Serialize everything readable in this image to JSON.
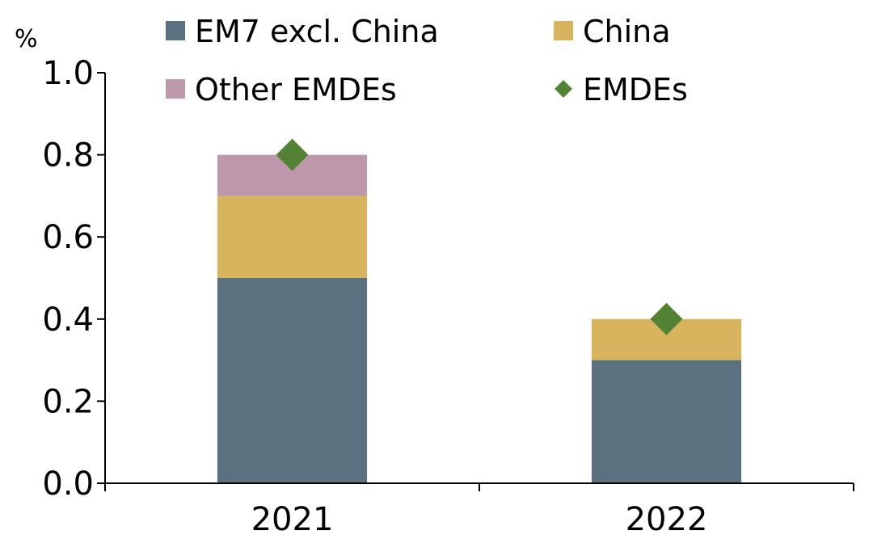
{
  "chart_data": {
    "type": "bar",
    "stacked": true,
    "categories": [
      "2021",
      "2022"
    ],
    "series": [
      {
        "name": "EM7 excl. China",
        "values": [
          0.5,
          0.3
        ],
        "color": "#5b7180"
      },
      {
        "name": "China",
        "values": [
          0.2,
          0.1
        ],
        "color": "#d8b45e"
      },
      {
        "name": "Other EMDEs",
        "values": [
          0.1,
          0.0
        ],
        "color": "#bd98aa"
      }
    ],
    "markers": {
      "name": "EMDEs",
      "values": [
        0.8,
        0.4
      ],
      "color": "#548235",
      "shape": "diamond"
    },
    "ylabel": "%",
    "ylim": [
      0,
      1.0
    ],
    "yticks": [
      "0.0",
      "0.2",
      "0.4",
      "0.6",
      "0.8",
      "1.0"
    ],
    "grid": false,
    "legend_position": "top"
  }
}
